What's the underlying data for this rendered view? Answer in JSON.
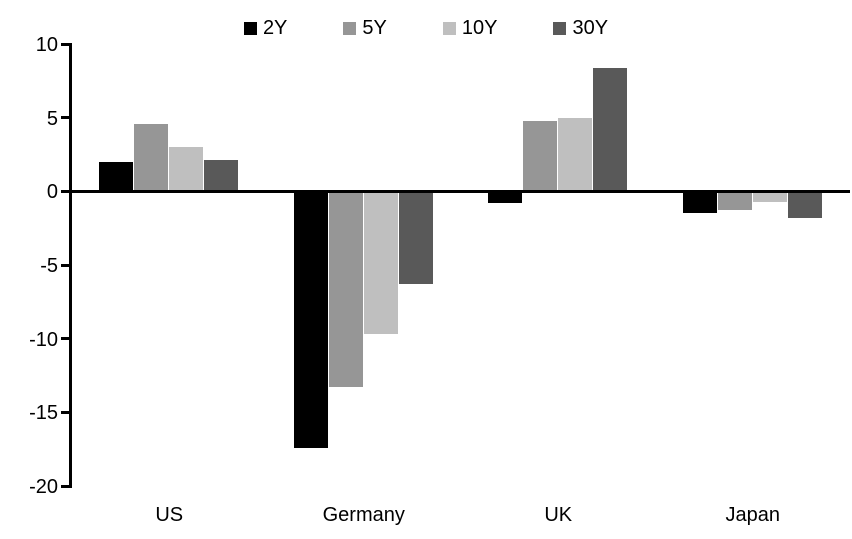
{
  "chart_data": {
    "type": "bar",
    "title": "",
    "categories": [
      "US",
      "Germany",
      "UK",
      "Japan"
    ],
    "series": [
      {
        "name": "2Y",
        "color": "#000000",
        "values": [
          2.0,
          -17.4,
          -0.8,
          -1.5
        ]
      },
      {
        "name": "5Y",
        "color": "#969696",
        "values": [
          4.6,
          -13.3,
          4.8,
          -1.3
        ]
      },
      {
        "name": "10Y",
        "color": "#bfbfbf",
        "values": [
          3.0,
          -9.7,
          5.0,
          -0.7
        ]
      },
      {
        "name": "30Y",
        "color": "#595959",
        "values": [
          2.1,
          -6.3,
          8.4,
          -1.8
        ]
      }
    ],
    "ylim": [
      -20,
      10
    ],
    "yticks": [
      10,
      5,
      0,
      -5,
      -10,
      -15,
      -20
    ],
    "grid": false,
    "legend_position": "top-center",
    "axis_color": "#000000",
    "background_color": "#ffffff"
  }
}
